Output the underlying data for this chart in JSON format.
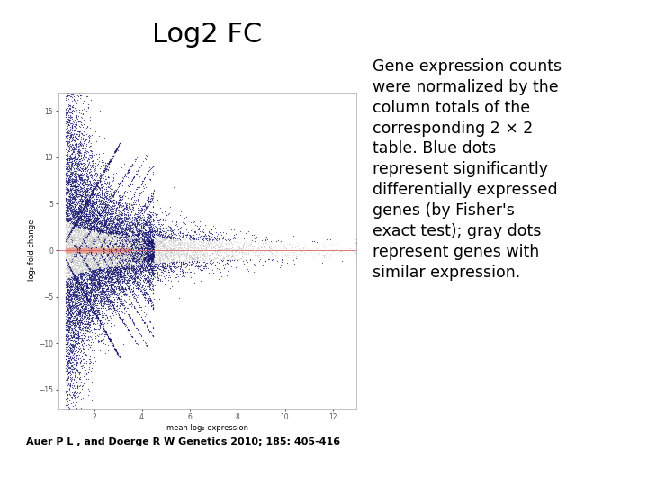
{
  "title": "Log2 FC",
  "title_fontsize": 22,
  "title_fontweight": "normal",
  "xlabel": "mean log₂ expression",
  "ylabel": "log₂ fold change",
  "xlabel_fontsize": 6,
  "ylabel_fontsize": 6,
  "xlim": [
    0.5,
    13
  ],
  "ylim": [
    -17,
    17
  ],
  "xticks": [
    2,
    4,
    6,
    8,
    10,
    12
  ],
  "yticks": [
    -15,
    -10,
    -5,
    0,
    5,
    10,
    15
  ],
  "annotation_text": "Gene expression counts\nwere normalized by the\ncolumn totals of the\ncorresponding 2 × 2\ntable. Blue dots\nrepresent significantly\ndifferentially expressed\ngenes (by Fisher's\nexact test); gray dots\nrepresent genes with\nsimilar expression.",
  "annotation_fontsize": 12.5,
  "citation_text": "Auer P L , and Doerge R W Genetics 2010; 185: 405-416",
  "citation_fontsize": 8,
  "citation_fontweight": "bold",
  "plot_bg_color": "#ffffff",
  "blue_color": "#191970",
  "gray_color": "#BEBEBE",
  "salmon_color": "#E8A090",
  "hline_color": "#CD5C5C",
  "seed": 42
}
